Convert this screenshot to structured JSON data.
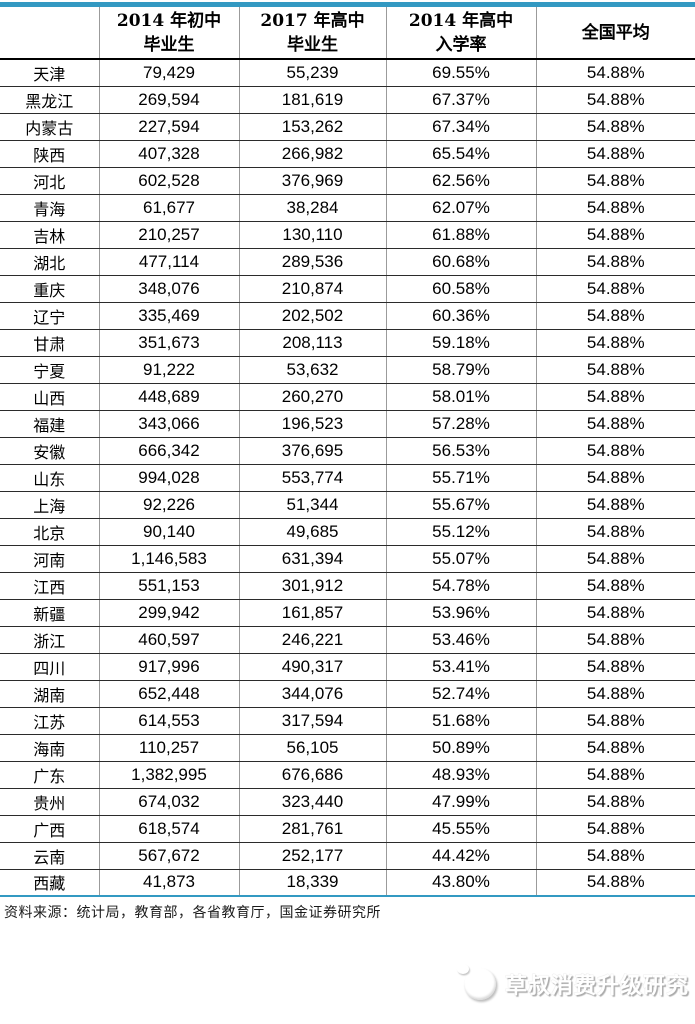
{
  "colors": {
    "accent_line": "#3399C2",
    "header_rule": "#000000",
    "row_rule": "#2b2b2b",
    "column_rule": "#9b9b9b",
    "watermark_shadow": "#ababab"
  },
  "table_header": {
    "col0": "",
    "col1_line1": "2014 年初中",
    "col1_line2": "毕业生",
    "col2_line1": "2017 年高中",
    "col2_line2": "毕业生",
    "col3_line1": "2014 年高中",
    "col3_line2": "入学率",
    "col4": "全国平均"
  },
  "chart_data": {
    "type": "table",
    "title": "",
    "columns": [
      "",
      "2014 年初中毕业生",
      "2017 年高中毕业生",
      "2014 年高中入学率",
      "全国平均"
    ],
    "national_average": "54.88%",
    "rows": [
      [
        "天津",
        "79,429",
        "55,239",
        "69.55%",
        "54.88%"
      ],
      [
        "黑龙江",
        "269,594",
        "181,619",
        "67.37%",
        "54.88%"
      ],
      [
        "内蒙古",
        "227,594",
        "153,262",
        "67.34%",
        "54.88%"
      ],
      [
        "陕西",
        "407,328",
        "266,982",
        "65.54%",
        "54.88%"
      ],
      [
        "河北",
        "602,528",
        "376,969",
        "62.56%",
        "54.88%"
      ],
      [
        "青海",
        "61,677",
        "38,284",
        "62.07%",
        "54.88%"
      ],
      [
        "吉林",
        "210,257",
        "130,110",
        "61.88%",
        "54.88%"
      ],
      [
        "湖北",
        "477,114",
        "289,536",
        "60.68%",
        "54.88%"
      ],
      [
        "重庆",
        "348,076",
        "210,874",
        "60.58%",
        "54.88%"
      ],
      [
        "辽宁",
        "335,469",
        "202,502",
        "60.36%",
        "54.88%"
      ],
      [
        "甘肃",
        "351,673",
        "208,113",
        "59.18%",
        "54.88%"
      ],
      [
        "宁夏",
        "91,222",
        "53,632",
        "58.79%",
        "54.88%"
      ],
      [
        "山西",
        "448,689",
        "260,270",
        "58.01%",
        "54.88%"
      ],
      [
        "福建",
        "343,066",
        "196,523",
        "57.28%",
        "54.88%"
      ],
      [
        "安徽",
        "666,342",
        "376,695",
        "56.53%",
        "54.88%"
      ],
      [
        "山东",
        "994,028",
        "553,774",
        "55.71%",
        "54.88%"
      ],
      [
        "上海",
        "92,226",
        "51,344",
        "55.67%",
        "54.88%"
      ],
      [
        "北京",
        "90,140",
        "49,685",
        "55.12%",
        "54.88%"
      ],
      [
        "河南",
        "1,146,583",
        "631,394",
        "55.07%",
        "54.88%"
      ],
      [
        "江西",
        "551,153",
        "301,912",
        "54.78%",
        "54.88%"
      ],
      [
        "新疆",
        "299,942",
        "161,857",
        "53.96%",
        "54.88%"
      ],
      [
        "浙江",
        "460,597",
        "246,221",
        "53.46%",
        "54.88%"
      ],
      [
        "四川",
        "917,996",
        "490,317",
        "53.41%",
        "54.88%"
      ],
      [
        "湖南",
        "652,448",
        "344,076",
        "52.74%",
        "54.88%"
      ],
      [
        "江苏",
        "614,553",
        "317,594",
        "51.68%",
        "54.88%"
      ],
      [
        "海南",
        "110,257",
        "56,105",
        "50.89%",
        "54.88%"
      ],
      [
        "广东",
        "1,382,995",
        "676,686",
        "48.93%",
        "54.88%"
      ],
      [
        "贵州",
        "674,032",
        "323,440",
        "47.99%",
        "54.88%"
      ],
      [
        "广西",
        "618,574",
        "281,761",
        "45.55%",
        "54.88%"
      ],
      [
        "云南",
        "567,672",
        "252,177",
        "44.42%",
        "54.88%"
      ],
      [
        "西藏",
        "41,873",
        "18,339",
        "43.80%",
        "54.88%"
      ]
    ]
  },
  "footnote": {
    "source": "资料来源：统计局，教育部，各省教育厅，国金证券研究所"
  },
  "watermark": {
    "text": "草叔消费升级研究",
    "logo": "panda-circle-logo"
  }
}
